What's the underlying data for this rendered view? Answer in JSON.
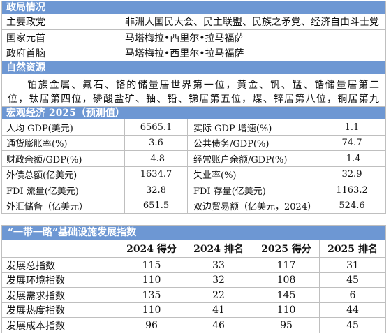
{
  "politics": {
    "header": "政局情况",
    "rows": [
      {
        "label": "主要政党",
        "value": "非洲人国民大会、民主联盟、民族之矛党、经济自由斗士党"
      },
      {
        "label": "国家元首",
        "value": "马塔梅拉•西里尔•拉马福萨"
      },
      {
        "label": "政府首脑",
        "value": "马塔梅拉•西里尔•拉马福萨"
      }
    ]
  },
  "resources": {
    "header": "自然资源",
    "text": "铂族金属、氟石、铬的储量居世界第一位，黄金、钒、锰、锆储量居第二位，钛居第四位，磷酸盐矿、铀、铅、锑居第五位，煤、锌居第八位，铜居第九位"
  },
  "macro": {
    "header": "宏观经济 2025（预测值）",
    "rows": [
      {
        "left_label": "人均 GDP(美元)",
        "left_value": "6565.1",
        "right_label": "实际 GDP 增速(%)",
        "right_value": "1.1"
      },
      {
        "left_label": "通货膨胀率(%)",
        "left_value": "3.6",
        "right_label": "公共债务/GDP(%)",
        "right_value": "74.7"
      },
      {
        "left_label": "财政余额/GDP(%)",
        "left_value": "-4.8",
        "right_label": "经常账户余额/GDP(%)",
        "right_value": "-1.4"
      },
      {
        "left_label": "外债总额(亿美元)",
        "left_value": "1634.7",
        "right_label": "失业率(%)",
        "right_value": "32.9"
      },
      {
        "left_label": "FDI 流量(亿美元)",
        "left_value": "32.8",
        "right_label": "FDI 存量(亿美元)",
        "right_value": "1163.2"
      },
      {
        "left_label": "外汇储备（亿美元）",
        "left_value": "651.5",
        "right_label": "双边贸易额（亿美元，2024）",
        "right_value": "524.6"
      }
    ]
  },
  "bri_index": {
    "title": "“一带一路”基础设施发展指数",
    "columns": [
      "2024 得分",
      "2024 排名",
      "2025 得分",
      "2025 排名"
    ],
    "rows": [
      {
        "label": "发展总指数",
        "score_2024": "115",
        "rank_2024": "33",
        "score_2025": "117",
        "rank_2025": "31"
      },
      {
        "label": "发展环境指数",
        "score_2024": "110",
        "rank_2024": "32",
        "score_2025": "108",
        "rank_2025": "45"
      },
      {
        "label": "发展需求指数",
        "score_2024": "135",
        "rank_2024": "22",
        "score_2025": "145",
        "rank_2025": "6"
      },
      {
        "label": "发展热度指数",
        "score_2024": "110",
        "rank_2024": "41",
        "score_2025": "110",
        "rank_2025": "44"
      },
      {
        "label": "发展成本指数",
        "score_2024": "96",
        "rank_2024": "46",
        "score_2025": "95",
        "rank_2025": "45"
      }
    ]
  },
  "colors": {
    "header_bg": "#6d97d3",
    "header_text": "#ffffff",
    "grid_line": "#bfbfbf"
  }
}
